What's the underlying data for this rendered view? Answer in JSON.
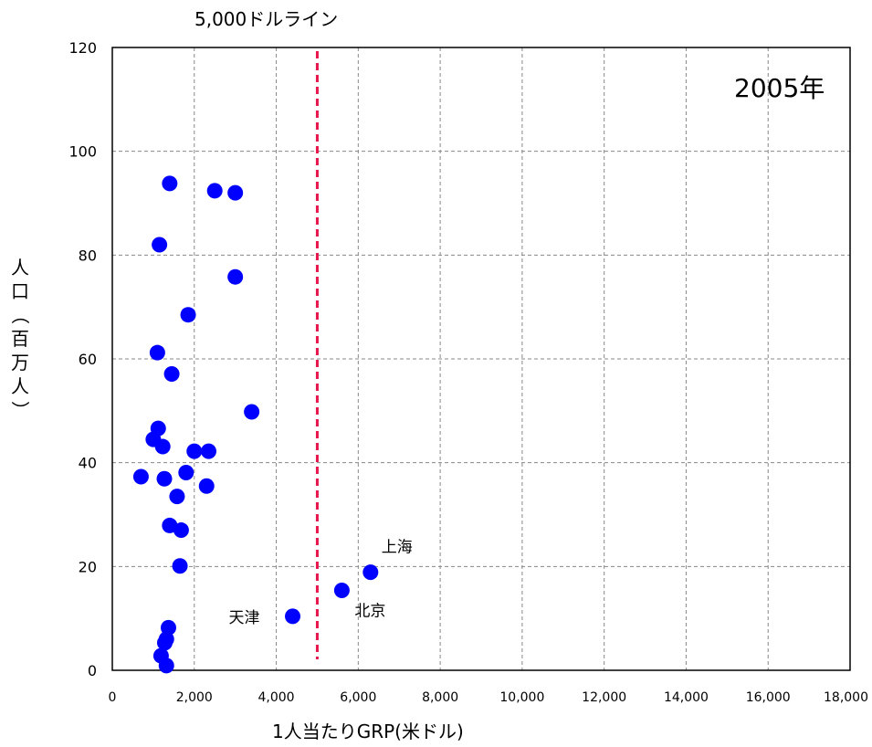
{
  "chart_data": {
    "type": "scatter",
    "xlabel": "1人当たりGRP(米ドル)",
    "ylabel": "人口（百万人）",
    "xlim": [
      0,
      18000
    ],
    "ylim": [
      0,
      120
    ],
    "x_ticks": [
      "0",
      "2,000",
      "4,000",
      "6,000",
      "8,000",
      "10,000",
      "12,000",
      "14,000",
      "16,000",
      "18,000"
    ],
    "y_ticks": [
      "0",
      "20",
      "40",
      "60",
      "80",
      "100",
      "120"
    ],
    "grid": true,
    "marker_color": "#0000ff",
    "reference_line": {
      "x": 5000,
      "label": "5,000ドルライン",
      "color": "#e8164c",
      "style": "dashed"
    },
    "annotation": "2005年",
    "points": [
      {
        "x": 1400,
        "y": 93.8
      },
      {
        "x": 2500,
        "y": 92.4
      },
      {
        "x": 3000,
        "y": 92.0
      },
      {
        "x": 1150,
        "y": 82.0
      },
      {
        "x": 3000,
        "y": 75.8
      },
      {
        "x": 1850,
        "y": 68.5
      },
      {
        "x": 1100,
        "y": 61.2
      },
      {
        "x": 1450,
        "y": 57.1
      },
      {
        "x": 3400,
        "y": 49.8
      },
      {
        "x": 1120,
        "y": 46.6
      },
      {
        "x": 1000,
        "y": 44.5
      },
      {
        "x": 1230,
        "y": 43.1
      },
      {
        "x": 2000,
        "y": 42.2
      },
      {
        "x": 2350,
        "y": 42.2
      },
      {
        "x": 1800,
        "y": 38.1
      },
      {
        "x": 700,
        "y": 37.3
      },
      {
        "x": 1270,
        "y": 36.9
      },
      {
        "x": 2300,
        "y": 35.5
      },
      {
        "x": 1580,
        "y": 33.5
      },
      {
        "x": 1400,
        "y": 27.9
      },
      {
        "x": 1680,
        "y": 27.0
      },
      {
        "x": 1650,
        "y": 20.1
      },
      {
        "x": 6300,
        "y": 18.9,
        "label": "上海"
      },
      {
        "x": 5600,
        "y": 15.4,
        "label": "北京"
      },
      {
        "x": 4400,
        "y": 10.4,
        "label": "天津"
      },
      {
        "x": 1370,
        "y": 8.2
      },
      {
        "x": 1320,
        "y": 6.0
      },
      {
        "x": 1280,
        "y": 5.3
      },
      {
        "x": 1190,
        "y": 2.8
      },
      {
        "x": 1320,
        "y": 0.9
      }
    ]
  }
}
